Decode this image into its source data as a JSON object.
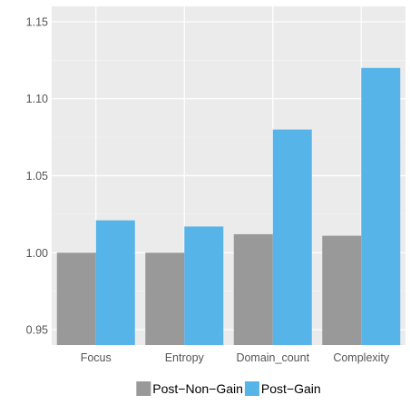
{
  "chart_data": {
    "type": "bar",
    "categories": [
      "Focus",
      "Entropy",
      "Domain_count",
      "Complexity"
    ],
    "series": [
      {
        "name": "Post−Non−Gain",
        "color": "#999999",
        "values": [
          1.0,
          1.0,
          1.012,
          1.011
        ]
      },
      {
        "name": "Post−Gain",
        "color": "#56B4E9",
        "values": [
          1.021,
          1.017,
          1.08,
          1.12
        ]
      }
    ],
    "ylim": [
      0.94,
      1.16
    ],
    "yticks": [
      0.95,
      1.0,
      1.05,
      1.1,
      1.15
    ],
    "ytick_labels": [
      "0.95",
      "1.00",
      "1.05",
      "1.10",
      "1.15"
    ],
    "grid": true,
    "panel_background": "#EBEBEB",
    "legend_position": "bottom",
    "title": "",
    "xlabel": "",
    "ylabel": ""
  }
}
